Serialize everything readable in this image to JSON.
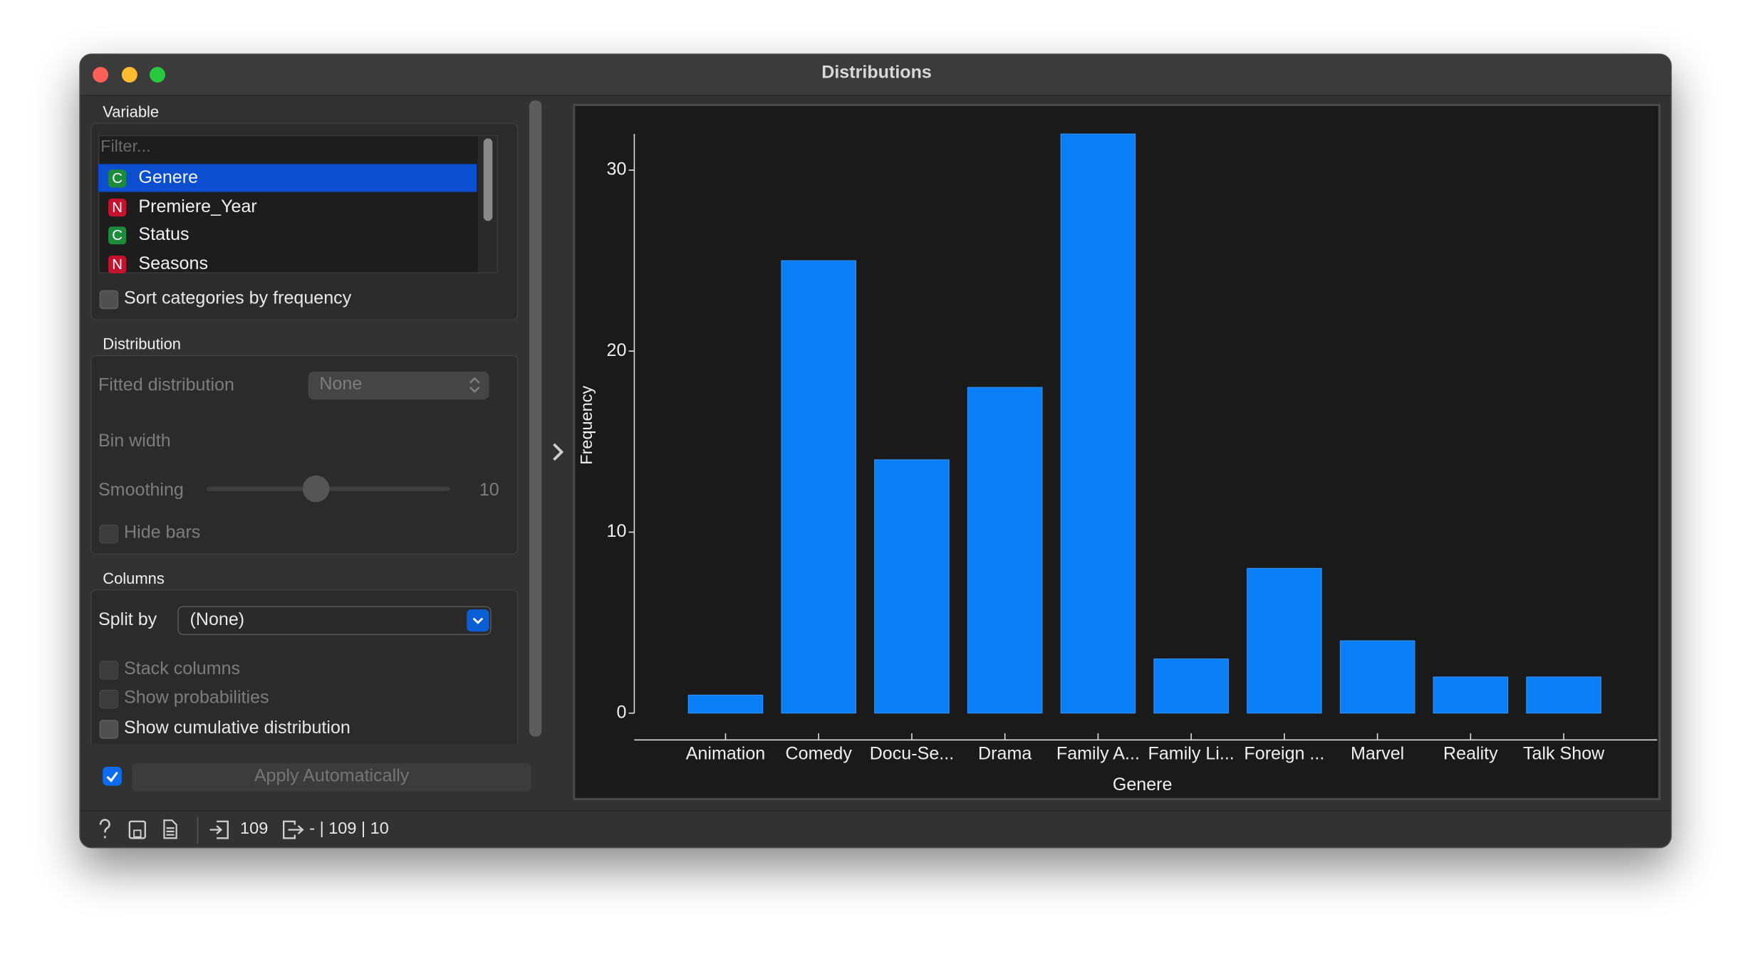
{
  "window": {
    "title": "Distributions"
  },
  "sidebar": {
    "variable_section": "Variable",
    "filter_placeholder": "Filter...",
    "variables": [
      {
        "type": "C",
        "name": "Genere"
      },
      {
        "type": "N",
        "name": "Premiere_Year"
      },
      {
        "type": "C",
        "name": "Status"
      },
      {
        "type": "N",
        "name": "Seasons"
      }
    ],
    "sort_checkbox": "Sort categories by frequency",
    "distribution_section": "Distribution",
    "fitted_label": "Fitted distribution",
    "fitted_value": "None",
    "bin_width_label": "Bin width",
    "smoothing_label": "Smoothing",
    "smoothing_value": 10,
    "hide_bars": "Hide bars",
    "columns_section": "Columns",
    "split_label": "Split by",
    "split_value": "(None)",
    "stack_columns": "Stack columns",
    "show_probabilities": "Show probabilities",
    "cumulative": "Show cumulative distribution",
    "apply": "Apply Automatically"
  },
  "status": {
    "input": 109,
    "output": "- | 109 | 10"
  },
  "chart_data": {
    "type": "bar",
    "xlabel": "Genere",
    "ylabel": "Frequency",
    "categories": [
      "Animation",
      "Comedy",
      "Docu-Se...",
      "Drama",
      "Family A...",
      "Family Li...",
      "Foreign ...",
      "Marvel",
      "Reality",
      "Talk Show"
    ],
    "values": [
      1,
      25,
      14,
      18,
      32,
      3,
      8,
      4,
      2,
      2
    ],
    "color": "#0a7ff5",
    "ylim": [
      0,
      32
    ],
    "yticks": [
      0,
      10,
      20,
      30
    ],
    "grid": false
  }
}
